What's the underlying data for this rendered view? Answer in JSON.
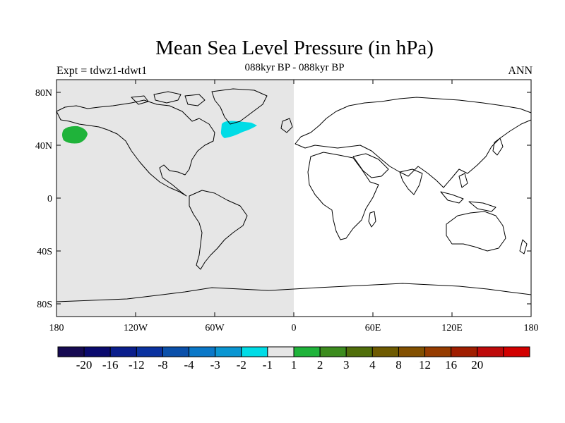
{
  "title": "Mean Sea Level Pressure (in hPa)",
  "subtitle": "088kyr BP - 088kyr BP",
  "left_label": "Expt = tdwz1-tdwt1",
  "right_label": "ANN",
  "map": {
    "projection": "cylindrical-equidistant",
    "lon_range": [
      -180,
      180
    ],
    "lat_range": [
      -90,
      90
    ],
    "shaded_hemisphere": "western",
    "shaded_color": "#e6e6e6",
    "x_ticks": [
      "180",
      "120W",
      "60W",
      "0",
      "60E",
      "120E",
      "180"
    ],
    "y_ticks": [
      "80N",
      "40N",
      "0",
      "40S",
      "80S"
    ],
    "anomalies": [
      {
        "name": "North Pacific",
        "class": "1 to 2",
        "color": "#1fb33a",
        "lon_center": -168,
        "lat_center": 48
      },
      {
        "name": "North Atlantic",
        "class": "-2 to -1",
        "color": "#00dce6",
        "lon_center": -40,
        "lat_center": 52
      }
    ]
  },
  "colorbar": {
    "colors": [
      "#160a52",
      "#0a0a6e",
      "#0a1e8c",
      "#0a32a0",
      "#0a50aa",
      "#0a78c8",
      "#0a96d2",
      "#00dce6",
      "#e6e6e6",
      "#1fb33a",
      "#3c8c1e",
      "#506e0a",
      "#6e5a00",
      "#825000",
      "#963c00",
      "#a01e00",
      "#be0a0a",
      "#d20000"
    ],
    "labels": [
      "-20",
      "-16",
      "-12",
      "-8",
      "-4",
      "-3",
      "-2",
      "-1",
      "1",
      "2",
      "3",
      "4",
      "8",
      "12",
      "16",
      "20"
    ]
  }
}
